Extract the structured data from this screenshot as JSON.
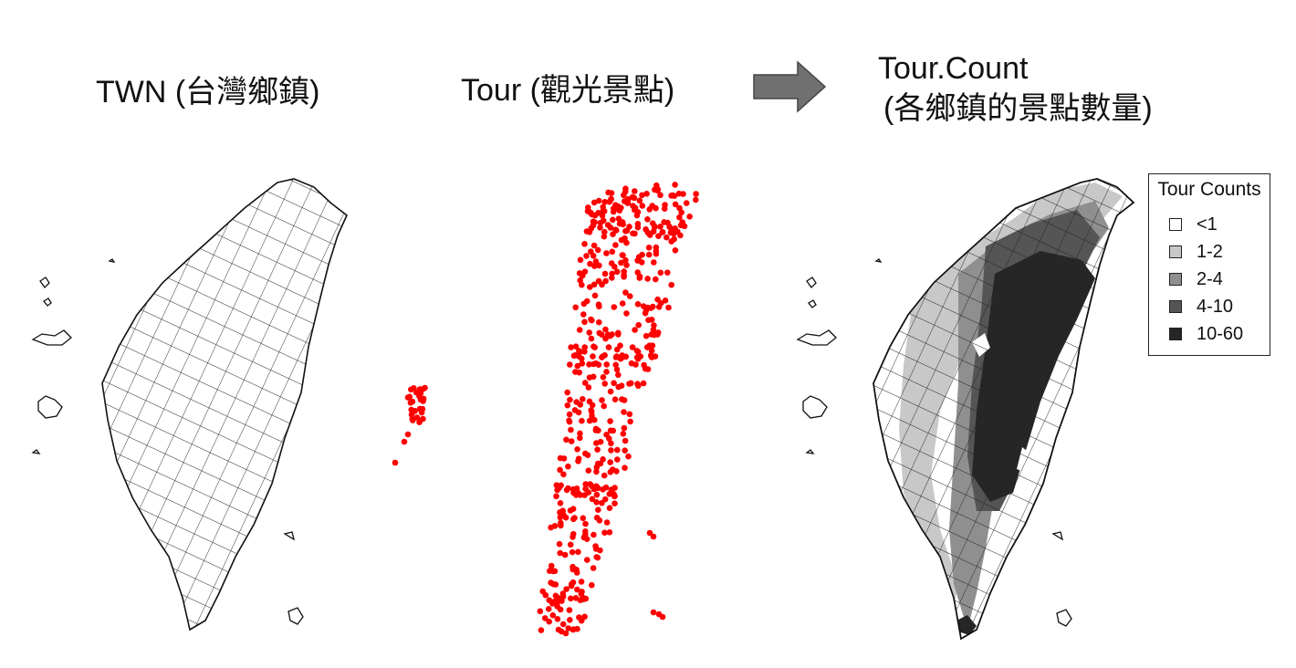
{
  "titles": {
    "twn": "TWN (台灣鄉鎮)",
    "tour": "Tour (觀光景點)",
    "count_line1": "Tour.Count",
    "count_line2": "(各鄉鎮的景點數量)"
  },
  "colors": {
    "point": "#ff0000",
    "arrow": "#707070",
    "outline": "#111111"
  },
  "legend": {
    "title": "Tour Counts",
    "items": [
      {
        "label": "<1",
        "color": "#ffffff"
      },
      {
        "label": "1-2",
        "color": "#c8c8c8"
      },
      {
        "label": "2-4",
        "color": "#8f8f8f"
      },
      {
        "label": "4-10",
        "color": "#555555"
      },
      {
        "label": "10-60",
        "color": "#262626"
      }
    ]
  }
}
